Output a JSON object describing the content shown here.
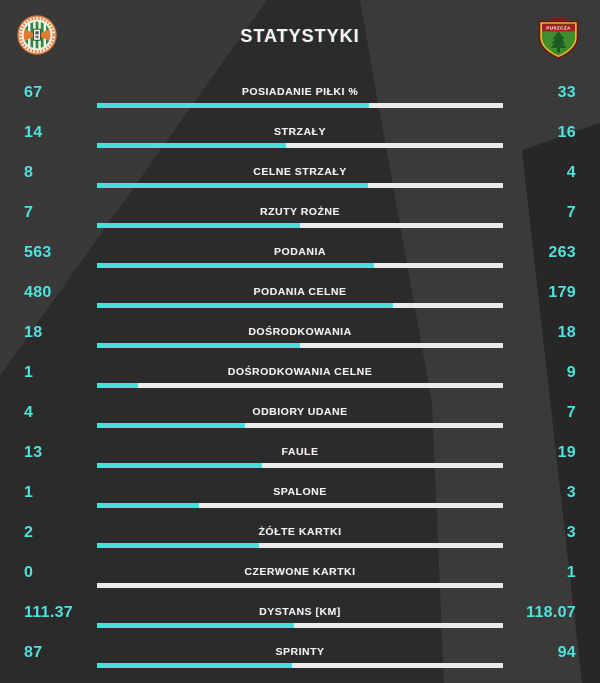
{
  "header": {
    "title": "STATYSTYKI"
  },
  "teams": {
    "home": {
      "logo": "zaglebie-lubin-crest"
    },
    "away": {
      "logo": "puszcza-niepolomice-crest"
    }
  },
  "colors": {
    "home_bar": "#45e2dd",
    "away_bar": "#ebe9e9",
    "value_text": "#4be4df",
    "label_text": "#f4f3f3",
    "background": "#2c2b2b"
  },
  "stats": [
    {
      "label": "POSIADANIE PIŁKI %",
      "home": "67",
      "away": "33"
    },
    {
      "label": "STRZAŁY",
      "home": "14",
      "away": "16"
    },
    {
      "label": "CELNE STRZAŁY",
      "home": "8",
      "away": "4"
    },
    {
      "label": "RZUTY ROŻNE",
      "home": "7",
      "away": "7"
    },
    {
      "label": "PODANIA",
      "home": "563",
      "away": "263"
    },
    {
      "label": "PODANIA CELNE",
      "home": "480",
      "away": "179"
    },
    {
      "label": "DOŚRODKOWANIA",
      "home": "18",
      "away": "18"
    },
    {
      "label": "DOŚRODKOWANIA CELNE",
      "home": "1",
      "away": "9"
    },
    {
      "label": "ODBIORY UDANE",
      "home": "4",
      "away": "7"
    },
    {
      "label": "FAULE",
      "home": "13",
      "away": "19"
    },
    {
      "label": "SPALONE",
      "home": "1",
      "away": "3"
    },
    {
      "label": "ŻÓŁTE KARTKI",
      "home": "2",
      "away": "3"
    },
    {
      "label": "CZERWONE KARTKI",
      "home": "0",
      "away": "1"
    },
    {
      "label": "DYSTANS [KM]",
      "home": "111.37",
      "away": "118.07"
    },
    {
      "label": "SPRINTY",
      "home": "87",
      "away": "94"
    }
  ],
  "chart_data": {
    "type": "bar",
    "orientation": "horizontal-paired",
    "title": "STATYSTYKI",
    "legend_position": "none",
    "categories": [
      "POSIADANIE PIŁKI %",
      "STRZAŁY",
      "CELNE STRZAŁY",
      "RZUTY ROŻNE",
      "PODANIA",
      "PODANIA CELNE",
      "DOŚRODKOWANIA",
      "DOŚRODKOWANIA CELNE",
      "ODBIORY UDANE",
      "FAULE",
      "SPALONE",
      "ŻÓŁTE KARTKI",
      "CZERWONE KARTKI",
      "DYSTANS [KM]",
      "SPRINTY"
    ],
    "series": [
      {
        "name": "home",
        "color": "#45e2dd",
        "values": [
          67,
          14,
          8,
          7,
          563,
          480,
          18,
          1,
          4,
          13,
          1,
          2,
          0,
          111.37,
          87
        ]
      },
      {
        "name": "away",
        "color": "#ebe9e9",
        "values": [
          33,
          16,
          4,
          7,
          263,
          179,
          18,
          9,
          7,
          19,
          3,
          3,
          1,
          118.07,
          94
        ]
      }
    ],
    "note": "each row bar is split proportionally home/(home+away)"
  }
}
